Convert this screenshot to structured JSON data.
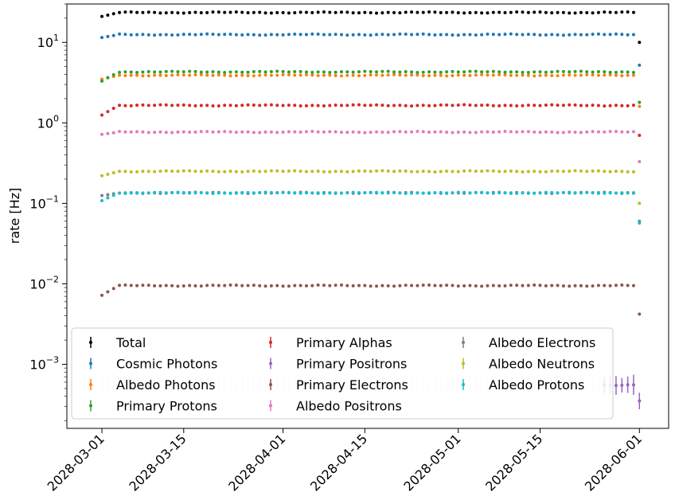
{
  "chart_data": {
    "type": "scatter",
    "ylabel": "rate [Hz]",
    "xlabel": "",
    "yscale": "log",
    "ylim": [
      0.00016,
      30
    ],
    "x_range": [
      "2028-02-24",
      "2028-06-06"
    ],
    "x_ticks": [
      "2028-03-01",
      "2028-03-15",
      "2028-04-01",
      "2028-04-15",
      "2028-05-01",
      "2028-05-15",
      "2028-06-01"
    ],
    "y_ticks": [
      {
        "value": 10,
        "label": "10^1",
        "base": "10",
        "exp": "1"
      },
      {
        "value": 1,
        "label": "10^0",
        "base": "10",
        "exp": "0"
      },
      {
        "value": 0.1,
        "label": "10^-1",
        "base": "10",
        "exp": "−1"
      },
      {
        "value": 0.01,
        "label": "10^-2",
        "base": "10",
        "exp": "−2"
      },
      {
        "value": 0.001,
        "label": "10^-3",
        "base": "10",
        "exp": "−3"
      }
    ],
    "grid": false,
    "legend_position": "lower center",
    "legend_columns": 3,
    "date_start": "2028-03-01",
    "date_end": "2028-06-01",
    "series": [
      {
        "name": "Total",
        "color": "#000000",
        "first": 21.0,
        "typical": 23.5,
        "last": 10.0
      },
      {
        "name": "Cosmic Photons",
        "color": "#1f77b4",
        "first": 11.5,
        "typical": 12.5,
        "last": 5.2
      },
      {
        "name": "Albedo Photons",
        "color": "#ff7f0e",
        "first": 3.5,
        "typical": 3.9,
        "last": 1.6
      },
      {
        "name": "Primary Protons",
        "color": "#2ca02c",
        "first": 3.3,
        "typical": 4.3,
        "last": 1.8
      },
      {
        "name": "Primary Alphas",
        "color": "#d62728",
        "first": 1.25,
        "typical": 1.65,
        "last": 0.7
      },
      {
        "name": "Primary Positrons",
        "color": "#9467bd",
        "first": 0.00055,
        "typical": 0.00055,
        "last": 0.00035
      },
      {
        "name": "Primary Electrons",
        "color": "#8c564b",
        "first": 0.0072,
        "typical": 0.0095,
        "last": 0.0042
      },
      {
        "name": "Albedo Positrons",
        "color": "#e377c2",
        "first": 0.72,
        "typical": 0.77,
        "last": 0.33
      },
      {
        "name": "Albedo Electrons",
        "color": "#7f7f7f",
        "first": 0.125,
        "typical": 0.135,
        "last": 0.06
      },
      {
        "name": "Albedo Neutrons",
        "color": "#bcbd22",
        "first": 0.22,
        "typical": 0.25,
        "last": 0.1
      },
      {
        "name": "Albedo Protons",
        "color": "#17becf",
        "first": 0.108,
        "typical": 0.135,
        "last": 0.057
      }
    ]
  }
}
